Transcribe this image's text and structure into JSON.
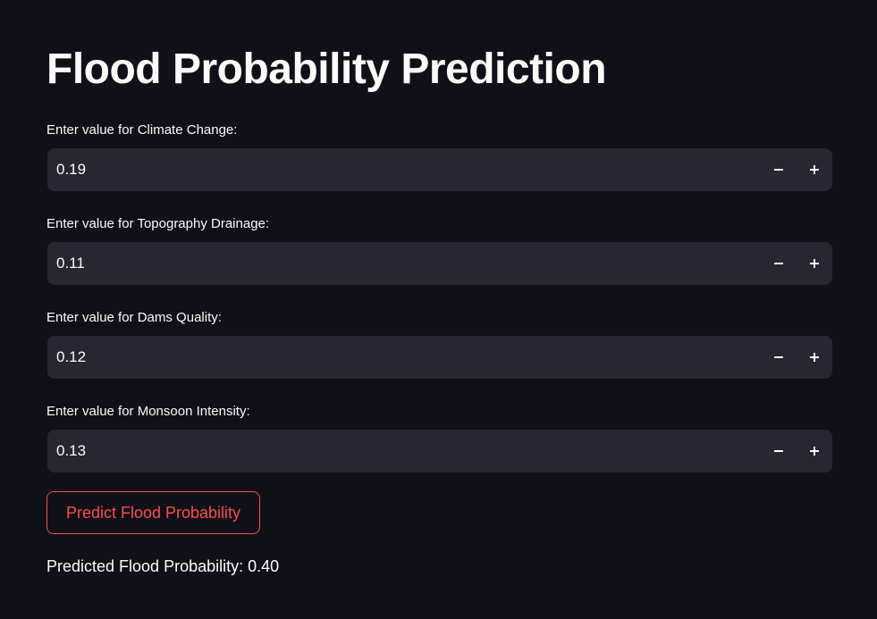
{
  "title": "Flood Probability Prediction",
  "fields": [
    {
      "label": "Enter value for Climate Change:",
      "value": "0.19"
    },
    {
      "label": "Enter value for Topography Drainage:",
      "value": "0.11"
    },
    {
      "label": "Enter value for Dams Quality:",
      "value": "0.12"
    },
    {
      "label": "Enter value for Monsoon Intensity:",
      "value": "0.13"
    }
  ],
  "icons": {
    "decrement": "minus-icon",
    "increment": "plus-icon"
  },
  "predict_button": {
    "label": "Predict Flood Probability"
  },
  "result": {
    "text": "Predicted Flood Probability: 0.40"
  },
  "colors": {
    "background": "#0e1117",
    "input_background": "#262730",
    "accent": "#ff4b4b",
    "text": "#fafafa"
  }
}
